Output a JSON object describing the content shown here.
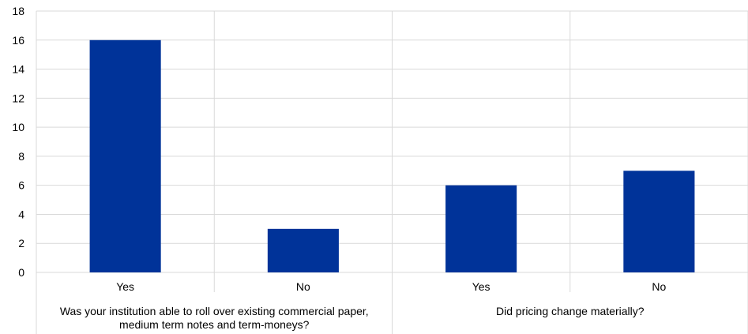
{
  "chart_data": {
    "type": "bar",
    "groups": [
      {
        "label": "Was your institution able to roll over existing commercial paper, medium term notes and term-moneys?",
        "categories": [
          "Yes",
          "No"
        ],
        "values": [
          16,
          3
        ]
      },
      {
        "label": "Did pricing change materially?",
        "categories": [
          "Yes",
          "No"
        ],
        "values": [
          6,
          7
        ]
      }
    ],
    "categories": [
      "Yes",
      "No",
      "Yes",
      "No"
    ],
    "values": [
      16,
      3,
      6,
      7
    ],
    "ylim": [
      0,
      18
    ],
    "yticks": [
      "0",
      "2",
      "4",
      "6",
      "8",
      "10",
      "12",
      "14",
      "16",
      "18"
    ],
    "grid": true,
    "title": "",
    "xlabel": "",
    "ylabel": "",
    "bar_color": "#003399",
    "grid_color": "#d9d9d9"
  },
  "group_label_lines": [
    [
      "Was your institution able to roll over existing commercial paper,",
      "medium term notes and term-moneys?"
    ],
    [
      "Did pricing change materially?"
    ]
  ]
}
